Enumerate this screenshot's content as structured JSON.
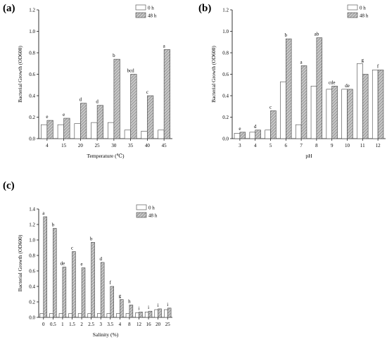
{
  "chart_data": [
    {
      "panel": "(a)",
      "type": "bar",
      "xlabel": "Temperature (℃)",
      "ylabel": "Bacterial Growth (OD600)",
      "ylim": [
        0,
        1.2
      ],
      "yticks": [
        "0.0",
        "0.2",
        "0.4",
        "0.6",
        "0.8",
        "1.0",
        "1.2"
      ],
      "categories": [
        "4",
        "15",
        "20",
        "25",
        "30",
        "35",
        "40",
        "45"
      ],
      "series": [
        {
          "name": "0 h",
          "values": [
            0.13,
            0.13,
            0.14,
            0.15,
            0.15,
            0.08,
            0.07,
            0.08
          ]
        },
        {
          "name": "48 h",
          "values": [
            0.17,
            0.19,
            0.33,
            0.31,
            0.74,
            0.6,
            0.4,
            0.83
          ]
        }
      ],
      "letters": [
        "e",
        "e",
        "d",
        "d",
        "b",
        "bcd",
        "c",
        "a"
      ],
      "legend": "top-right"
    },
    {
      "panel": "(b)",
      "type": "bar",
      "xlabel": "pH",
      "ylabel": "Bacterial Growth (OD600)",
      "ylim": [
        0,
        1.2
      ],
      "yticks": [
        "0.0",
        "0.2",
        "0.4",
        "0.6",
        "0.8",
        "1.0",
        "1.2"
      ],
      "categories": [
        "3",
        "4",
        "5",
        "6",
        "7",
        "8",
        "9",
        "10",
        "11",
        "12"
      ],
      "series": [
        {
          "name": "0 h",
          "values": [
            0.05,
            0.06,
            0.08,
            0.53,
            0.13,
            0.49,
            0.46,
            0.46,
            0.7,
            0.64
          ]
        },
        {
          "name": "48 h",
          "values": [
            0.06,
            0.08,
            0.26,
            0.93,
            0.68,
            0.94,
            0.49,
            0.46,
            0.6,
            0.64
          ]
        }
      ],
      "letters": [
        "e",
        "d",
        "c",
        "b",
        "a",
        "ab",
        "cde",
        "de",
        "g",
        "f"
      ],
      "legend": "top-right"
    },
    {
      "panel": "(c)",
      "type": "bar",
      "xlabel": "Salinity (%)",
      "ylabel": "Bacterial Growth (OD600)",
      "ylim": [
        0,
        1.4
      ],
      "yticks": [
        "0.0",
        "0.2",
        "0.4",
        "0.6",
        "0.8",
        "1.0",
        "1.2",
        "1.4"
      ],
      "categories": [
        "0",
        "0.5",
        "1",
        "1.5",
        "2",
        "2.5",
        "3",
        "3.5",
        "4",
        "8",
        "12",
        "16",
        "20",
        "25"
      ],
      "series": [
        {
          "name": "0 h",
          "values": [
            0.05,
            0.05,
            0.05,
            0.05,
            0.05,
            0.05,
            0.05,
            0.05,
            0.05,
            0.05,
            0.06,
            0.07,
            0.1,
            0.1
          ]
        },
        {
          "name": "48 h",
          "values": [
            1.3,
            1.15,
            0.65,
            0.85,
            0.64,
            0.97,
            0.71,
            0.4,
            0.23,
            0.16,
            0.07,
            0.08,
            0.11,
            0.12
          ]
        }
      ],
      "letters": [
        "a",
        "b",
        "de",
        "c",
        "e",
        "b",
        "d",
        "f",
        "g",
        "h",
        "i",
        "i",
        "i",
        "i"
      ],
      "legend": "top-right"
    }
  ]
}
